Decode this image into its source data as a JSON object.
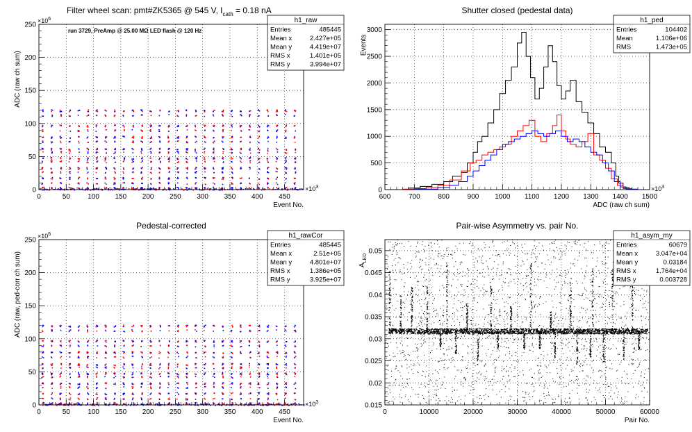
{
  "page": {
    "background": "#ffffff",
    "accent_red": "#ff0000",
    "accent_blue": "#0000ff"
  },
  "chart_data": [
    {
      "type": "scatter",
      "title_main": "Filter wheel scan: pmt#ZK5365 @   545 V, I",
      "title_sub": "cath",
      "title_tail": " = 0.18 nA",
      "annotation": "run 3729, PreAmp @ 25.00 MΩ LED flash @  120 Hz",
      "xlabel": "Event No.",
      "ylabel": "ADC (raw ch sum)",
      "x_exp": "×10",
      "x_exp_pow": "3",
      "y_exp": "×10",
      "y_exp_pow": "6",
      "xlim": [
        0,
        485
      ],
      "ylim": [
        0,
        250
      ],
      "xticks": [
        0,
        50,
        100,
        150,
        200,
        250,
        300,
        350,
        400,
        450
      ],
      "yticks": [
        0,
        50,
        100,
        150,
        200,
        250
      ],
      "grid": true,
      "series": [
        {
          "color": "#ff0000"
        },
        {
          "color": "#0000ff"
        }
      ],
      "levels": [
        120,
        113,
        97,
        90,
        80,
        73,
        62,
        57,
        48,
        43,
        33,
        27,
        18,
        10,
        3
      ],
      "stats": {
        "name": "h1_raw",
        "rows": [
          [
            "Entries",
            "485445"
          ],
          [
            "Mean x",
            "2.427e+05"
          ],
          [
            "Mean y",
            "4.419e+07"
          ],
          [
            "RMS x",
            "1.401e+05"
          ],
          [
            "RMS y",
            "3.994e+07"
          ]
        ]
      }
    },
    {
      "type": "line",
      "title": "Shutter closed (pedestal data)",
      "xlabel": "ADC (raw ch sum)",
      "ylabel": "Events",
      "x_exp": "×10",
      "x_exp_pow": "3",
      "xlim": [
        600,
        1500
      ],
      "ylim": [
        0,
        3100
      ],
      "xticks": [
        600,
        700,
        800,
        900,
        1000,
        1100,
        1200,
        1300,
        1400,
        1500
      ],
      "yticks": [
        0,
        500,
        1000,
        1500,
        2000,
        2500,
        3000
      ],
      "grid": true,
      "series": [
        {
          "color": "#000000",
          "points": [
            [
              600,
              0
            ],
            [
              650,
              0
            ],
            [
              680,
              30
            ],
            [
              720,
              60
            ],
            [
              760,
              100
            ],
            [
              800,
              150
            ],
            [
              830,
              250
            ],
            [
              860,
              320
            ],
            [
              880,
              500
            ],
            [
              900,
              700
            ],
            [
              915,
              900
            ],
            [
              930,
              1000
            ],
            [
              950,
              1250
            ],
            [
              970,
              1500
            ],
            [
              990,
              1800
            ],
            [
              1010,
              2050
            ],
            [
              1030,
              2300
            ],
            [
              1050,
              2750
            ],
            [
              1065,
              2950
            ],
            [
              1080,
              2500
            ],
            [
              1095,
              2100
            ],
            [
              1110,
              1700
            ],
            [
              1125,
              1900
            ],
            [
              1140,
              2300
            ],
            [
              1155,
              2700
            ],
            [
              1170,
              2400
            ],
            [
              1185,
              1950
            ],
            [
              1200,
              1700
            ],
            [
              1215,
              1850
            ],
            [
              1230,
              2050
            ],
            [
              1250,
              1650
            ],
            [
              1270,
              1450
            ],
            [
              1290,
              1250
            ],
            [
              1310,
              1050
            ],
            [
              1330,
              800
            ],
            [
              1350,
              700
            ],
            [
              1370,
              500
            ],
            [
              1385,
              250
            ],
            [
              1395,
              120
            ],
            [
              1410,
              40
            ],
            [
              1430,
              0
            ],
            [
              1500,
              0
            ]
          ]
        },
        {
          "color": "#ff0000",
          "points": [
            [
              600,
              0
            ],
            [
              660,
              10
            ],
            [
              700,
              20
            ],
            [
              740,
              40
            ],
            [
              780,
              80
            ],
            [
              820,
              180
            ],
            [
              860,
              350
            ],
            [
              890,
              500
            ],
            [
              910,
              550
            ],
            [
              930,
              650
            ],
            [
              950,
              700
            ],
            [
              970,
              750
            ],
            [
              990,
              800
            ],
            [
              1010,
              850
            ],
            [
              1030,
              1000
            ],
            [
              1050,
              1100
            ],
            [
              1070,
              1200
            ],
            [
              1090,
              1300
            ],
            [
              1110,
              1000
            ],
            [
              1130,
              900
            ],
            [
              1150,
              1050
            ],
            [
              1170,
              1200
            ],
            [
              1185,
              1400
            ],
            [
              1200,
              1100
            ],
            [
              1215,
              950
            ],
            [
              1230,
              850
            ],
            [
              1250,
              800
            ],
            [
              1270,
              900
            ],
            [
              1290,
              1050
            ],
            [
              1310,
              650
            ],
            [
              1330,
              550
            ],
            [
              1350,
              400
            ],
            [
              1370,
              200
            ],
            [
              1390,
              80
            ],
            [
              1410,
              20
            ],
            [
              1440,
              0
            ],
            [
              1500,
              0
            ]
          ]
        },
        {
          "color": "#0000ff",
          "points": [
            [
              600,
              0
            ],
            [
              700,
              10
            ],
            [
              780,
              40
            ],
            [
              820,
              80
            ],
            [
              850,
              150
            ],
            [
              880,
              250
            ],
            [
              900,
              350
            ],
            [
              920,
              450
            ],
            [
              940,
              550
            ],
            [
              960,
              650
            ],
            [
              980,
              750
            ],
            [
              1000,
              850
            ],
            [
              1020,
              900
            ],
            [
              1040,
              950
            ],
            [
              1060,
              1000
            ],
            [
              1080,
              1050
            ],
            [
              1100,
              1100
            ],
            [
              1120,
              1050
            ],
            [
              1140,
              1000
            ],
            [
              1160,
              1050
            ],
            [
              1180,
              1100
            ],
            [
              1200,
              1000
            ],
            [
              1220,
              900
            ],
            [
              1240,
              950
            ],
            [
              1260,
              900
            ],
            [
              1280,
              800
            ],
            [
              1300,
              700
            ],
            [
              1320,
              650
            ],
            [
              1340,
              500
            ],
            [
              1360,
              350
            ],
            [
              1380,
              150
            ],
            [
              1400,
              50
            ],
            [
              1420,
              10
            ],
            [
              1460,
              0
            ],
            [
              1500,
              0
            ]
          ]
        }
      ],
      "stats": {
        "name": "h1_ped",
        "rows": [
          [
            "Entries",
            "104402"
          ],
          [
            "Mean",
            "1.106e+06"
          ],
          [
            "RMS",
            "1.473e+05"
          ]
        ]
      }
    },
    {
      "type": "scatter",
      "title": "Pedestal-corrected",
      "xlabel": "Event No.",
      "ylabel": "ADC (raw, ped-corr ch sum)",
      "x_exp": "×10",
      "x_exp_pow": "3",
      "y_exp": "×10",
      "y_exp_pow": "6",
      "xlim": [
        0,
        485
      ],
      "ylim": [
        0,
        250
      ],
      "xticks": [
        0,
        50,
        100,
        150,
        200,
        250,
        300,
        350,
        400,
        450
      ],
      "yticks": [
        0,
        50,
        100,
        150,
        200,
        250
      ],
      "grid": true,
      "series": [
        {
          "color": "#ff0000"
        },
        {
          "color": "#0000ff"
        }
      ],
      "levels": [
        120,
        113,
        97,
        90,
        80,
        73,
        62,
        57,
        48,
        43,
        33,
        27,
        18,
        10,
        3
      ],
      "stats": {
        "name": "h1_rawCor",
        "rows": [
          [
            "Entries",
            "485445"
          ],
          [
            "Mean x",
            "2.51e+05"
          ],
          [
            "Mean y",
            "4.801e+07"
          ],
          [
            "RMS x",
            "1.386e+05"
          ],
          [
            "RMS y",
            "3.925e+07"
          ]
        ]
      }
    },
    {
      "type": "scatter",
      "title": "Pair-wise Asymmetry vs. pair No.",
      "xlabel": "Pair No.",
      "ylabel": "A",
      "ylabel_sub": "LED",
      "xlim": [
        0,
        60000
      ],
      "ylim": [
        0.015,
        0.0525
      ],
      "xticks": [
        0,
        10000,
        20000,
        30000,
        40000,
        50000,
        60000
      ],
      "yticks": [
        0.015,
        0.02,
        0.025,
        0.03,
        0.035,
        0.04,
        0.045,
        0.05
      ],
      "grid": true,
      "band_center": 0.0318,
      "spikes_up": [
        1000,
        3500,
        6000,
        9500,
        14000,
        18500,
        24000,
        28500,
        33000,
        37500,
        42000,
        47000,
        51500,
        56000
      ],
      "spikes_down": [
        12500,
        16000,
        21000,
        25500,
        31500,
        35000,
        38500,
        43500,
        46500,
        49500,
        54000,
        57500
      ],
      "series": [
        {
          "color": "#000000"
        }
      ],
      "stats": {
        "name": "h1_asym_my",
        "rows": [
          [
            "Entries",
            "60679"
          ],
          [
            "Mean x",
            "3.047e+04"
          ],
          [
            "Mean y",
            "0.03184"
          ],
          [
            "RMS x",
            "1.764e+04"
          ],
          [
            "RMS y",
            "0.003728"
          ]
        ]
      }
    }
  ]
}
